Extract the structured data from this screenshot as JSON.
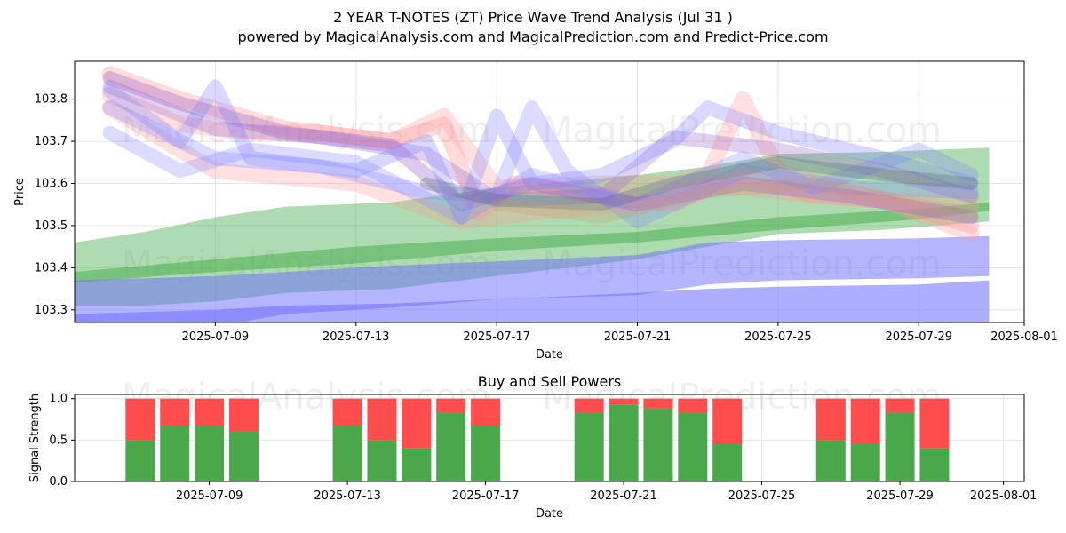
{
  "title_line1": "2 YEAR T-NOTES (ZT) Price Wave Trend Analysis (Jul 31 )",
  "title_line2": "powered by MagicalAnalysis.com and MagicalPrediction.com and Predict-Price.com",
  "watermarks": [
    "MagicalAnalysis.com",
    "MagicalPrediction.com"
  ],
  "colors": {
    "buy": "#4aa84a",
    "sell": "#ff4d4d",
    "green_band": "#4caf50",
    "blue_band": "#6b6bff",
    "red_wave": "#ff9999",
    "purple_wave": "#9966cc",
    "blue_wave": "#8080ff"
  },
  "chart_data": [
    {
      "type": "area",
      "title": "",
      "xlabel": "Date",
      "ylabel": "Price",
      "x_ticks": [
        "2025-07-09",
        "2025-07-13",
        "2025-07-17",
        "2025-07-21",
        "2025-07-25",
        "2025-07-29",
        "2025-08-01"
      ],
      "y_ticks": [
        103.3,
        103.4,
        103.5,
        103.6,
        103.7,
        103.8
      ],
      "xlim": [
        "2025-07-05",
        "2025-08-01"
      ],
      "ylim": [
        103.27,
        103.89
      ],
      "grid": true,
      "bands": [
        {
          "name": "",
          "color": "#4caf50",
          "alpha": 0.45,
          "x": [
            "2025-07-05",
            "2025-07-07",
            "2025-07-09",
            "2025-07-11",
            "2025-07-14",
            "2025-07-17",
            "2025-07-21",
            "2025-07-23",
            "2025-07-25",
            "2025-07-28",
            "2025-07-31"
          ],
          "upper": [
            103.46,
            103.485,
            103.52,
            103.545,
            103.555,
            103.59,
            103.62,
            103.64,
            103.67,
            103.675,
            103.685
          ],
          "lower": [
            103.31,
            103.31,
            103.32,
            103.34,
            103.35,
            103.38,
            103.42,
            103.45,
            103.48,
            103.49,
            103.51
          ]
        },
        {
          "name": "",
          "color": "#4caf50",
          "alpha": 0.55,
          "x": [
            "2025-07-05",
            "2025-07-09",
            "2025-07-13",
            "2025-07-17",
            "2025-07-21",
            "2025-07-25",
            "2025-07-29",
            "2025-07-31"
          ],
          "upper": [
            103.39,
            103.42,
            103.45,
            103.47,
            103.485,
            103.52,
            103.54,
            103.555
          ],
          "lower": [
            103.365,
            103.39,
            103.41,
            103.44,
            103.46,
            103.49,
            103.515,
            103.535
          ]
        },
        {
          "name": "",
          "color": "#6b6bff",
          "alpha": 0.5,
          "x": [
            "2025-07-05",
            "2025-07-07",
            "2025-07-09",
            "2025-07-11",
            "2025-07-14",
            "2025-07-17",
            "2025-07-21",
            "2025-07-23",
            "2025-07-25",
            "2025-07-29",
            "2025-07-31"
          ],
          "upper": [
            103.37,
            103.375,
            103.38,
            103.39,
            103.405,
            103.415,
            103.43,
            103.46,
            103.465,
            103.47,
            103.475
          ],
          "lower": [
            103.23,
            103.24,
            103.26,
            103.29,
            103.305,
            103.325,
            103.335,
            103.36,
            103.37,
            103.375,
            103.38
          ]
        },
        {
          "name": "",
          "color": "#6b6bff",
          "alpha": 0.55,
          "x": [
            "2025-07-05",
            "2025-07-07",
            "2025-07-09",
            "2025-07-11",
            "2025-07-14",
            "2025-07-17",
            "2025-07-21",
            "2025-07-23",
            "2025-07-25",
            "2025-07-29",
            "2025-07-31"
          ],
          "upper": [
            103.29,
            103.295,
            103.3,
            103.31,
            103.315,
            103.325,
            103.34,
            103.35,
            103.355,
            103.36,
            103.37
          ],
          "lower": [
            103.2,
            103.2,
            103.21,
            103.22,
            103.225,
            103.23,
            103.24,
            103.25,
            103.255,
            103.26,
            103.265
          ]
        }
      ],
      "waves": [
        {
          "color": "#ff9999",
          "alpha": 0.35,
          "width": 18,
          "x": [
            "2025-07-06",
            "2025-07-08",
            "2025-07-11",
            "2025-07-14",
            "2025-07-15.5",
            "2025-07-16.5",
            "2025-07-17.5",
            "2025-07-20",
            "2025-07-22",
            "2025-07-24",
            "2025-07-26",
            "2025-07-28",
            "2025-07-30.5"
          ],
          "y": [
            103.86,
            103.8,
            103.73,
            103.7,
            103.74,
            103.53,
            103.6,
            103.57,
            103.55,
            103.62,
            103.57,
            103.56,
            103.5
          ]
        },
        {
          "color": "#ff9999",
          "alpha": 0.3,
          "width": 18,
          "x": [
            "2025-07-06",
            "2025-07-08",
            "2025-07-10",
            "2025-07-12",
            "2025-07-14",
            "2025-07-15.5",
            "2025-07-17",
            "2025-07-20",
            "2025-07-22",
            "2025-07-23",
            "2025-07-24",
            "2025-07-25",
            "2025-07-28",
            "2025-07-30.5"
          ],
          "y": [
            103.81,
            103.74,
            103.72,
            103.72,
            103.7,
            103.76,
            103.59,
            103.6,
            103.6,
            103.62,
            103.8,
            103.63,
            103.56,
            103.55
          ]
        },
        {
          "color": "#ff9999",
          "alpha": 0.3,
          "width": 18,
          "x": [
            "2025-07-06",
            "2025-07-09",
            "2025-07-13",
            "2025-07-16",
            "2025-07-19",
            "2025-07-21",
            "2025-07-23",
            "2025-07-25",
            "2025-07-28",
            "2025-07-30.5"
          ],
          "y": [
            103.78,
            103.63,
            103.6,
            103.51,
            103.54,
            103.55,
            103.6,
            103.58,
            103.56,
            103.48
          ]
        },
        {
          "color": "#9966cc",
          "alpha": 0.35,
          "width": 16,
          "x": [
            "2025-07-06",
            "2025-07-08",
            "2025-07-11",
            "2025-07-14",
            "2025-07-16",
            "2025-07-18",
            "2025-07-21",
            "2025-07-24",
            "2025-07-27",
            "2025-07-30.5"
          ],
          "y": [
            103.85,
            103.79,
            103.72,
            103.69,
            103.55,
            103.6,
            103.55,
            103.6,
            103.57,
            103.52
          ]
        },
        {
          "color": "#9966cc",
          "alpha": 0.3,
          "width": 16,
          "x": [
            "2025-07-06",
            "2025-07-09",
            "2025-07-12",
            "2025-07-15",
            "2025-07-17",
            "2025-07-20",
            "2025-07-22",
            "2025-07-25",
            "2025-07-28",
            "2025-07-30.5"
          ],
          "y": [
            103.83,
            103.73,
            103.71,
            103.67,
            103.56,
            103.57,
            103.71,
            103.68,
            103.63,
            103.57
          ]
        },
        {
          "color": "#8080ff",
          "alpha": 0.3,
          "width": 16,
          "x": [
            "2025-07-06",
            "2025-07-08",
            "2025-07-09",
            "2025-07-10",
            "2025-07-13",
            "2025-07-15",
            "2025-07-16",
            "2025-07-17",
            "2025-07-18",
            "2025-07-20",
            "2025-07-22",
            "2025-07-23",
            "2025-07-25",
            "2025-07-28",
            "2025-07-30.5"
          ],
          "y": [
            103.82,
            103.7,
            103.83,
            103.66,
            103.63,
            103.7,
            103.52,
            103.76,
            103.6,
            103.62,
            103.7,
            103.78,
            103.72,
            103.66,
            103.6
          ]
        },
        {
          "color": "#8080ff",
          "alpha": 0.28,
          "width": 16,
          "x": [
            "2025-07-06",
            "2025-07-08",
            "2025-07-10",
            "2025-07-13",
            "2025-07-16",
            "2025-07-18",
            "2025-07-21",
            "2025-07-24",
            "2025-07-26",
            "2025-07-29",
            "2025-07-30.5"
          ],
          "y": [
            103.72,
            103.63,
            103.68,
            103.65,
            103.52,
            103.62,
            103.55,
            103.66,
            103.59,
            103.68,
            103.62
          ]
        },
        {
          "color": "#8080ff",
          "alpha": 0.28,
          "width": 16,
          "x": [
            "2025-07-06",
            "2025-07-09",
            "2025-07-12",
            "2025-07-15",
            "2025-07-17",
            "2025-07-18",
            "2025-07-19",
            "2025-07-21",
            "2025-07-24",
            "2025-07-27",
            "2025-07-30.5"
          ],
          "y": [
            103.78,
            103.66,
            103.64,
            103.58,
            103.57,
            103.78,
            103.63,
            103.51,
            103.63,
            103.59,
            103.58
          ]
        },
        {
          "color": "#556677",
          "alpha": 0.3,
          "width": 14,
          "x": [
            "2025-07-15",
            "2025-07-17",
            "2025-07-20",
            "2025-07-22",
            "2025-07-25",
            "2025-07-28",
            "2025-07-30.5"
          ],
          "y": [
            103.6,
            103.56,
            103.55,
            103.6,
            103.65,
            103.62,
            103.6
          ]
        },
        {
          "color": "#cc9966",
          "alpha": 0.25,
          "width": 14,
          "x": [
            "2025-07-17",
            "2025-07-20",
            "2025-07-23",
            "2025-07-26",
            "2025-07-29",
            "2025-07-30.5"
          ],
          "y": [
            103.55,
            103.52,
            103.58,
            103.6,
            103.55,
            103.53
          ]
        }
      ]
    },
    {
      "type": "bar",
      "title": "Buy and Sell Powers",
      "xlabel": "Date",
      "ylabel": "Signal Strength",
      "x_ticks": [
        "2025-07-09",
        "2025-07-13",
        "2025-07-17",
        "2025-07-21",
        "2025-07-25",
        "2025-07-29",
        "2025-08-01"
      ],
      "y_ticks": [
        0.0,
        0.5,
        1.0
      ],
      "ylim": [
        0,
        1.05
      ],
      "grid": true,
      "categories": [
        "2025-07-07",
        "2025-07-08",
        "2025-07-09",
        "2025-07-10",
        "2025-07-13",
        "2025-07-14",
        "2025-07-15",
        "2025-07-16",
        "2025-07-17",
        "2025-07-20",
        "2025-07-21",
        "2025-07-22",
        "2025-07-23",
        "2025-07-24",
        "2025-07-27",
        "2025-07-28",
        "2025-07-29",
        "2025-07-30"
      ],
      "series": [
        {
          "name": "Buy",
          "color": "#4aa84a",
          "values": [
            0.5,
            0.67,
            0.67,
            0.61,
            0.67,
            0.5,
            0.4,
            0.83,
            0.67,
            0.83,
            0.93,
            0.88,
            0.83,
            0.45,
            0.5,
            0.45,
            0.83,
            0.4
          ]
        },
        {
          "name": "Sell",
          "color": "#ff4d4d",
          "values": [
            0.5,
            0.33,
            0.33,
            0.39,
            0.33,
            0.5,
            0.6,
            0.17,
            0.33,
            0.17,
            0.07,
            0.12,
            0.17,
            0.55,
            0.5,
            0.55,
            0.17,
            0.6
          ]
        }
      ]
    }
  ]
}
